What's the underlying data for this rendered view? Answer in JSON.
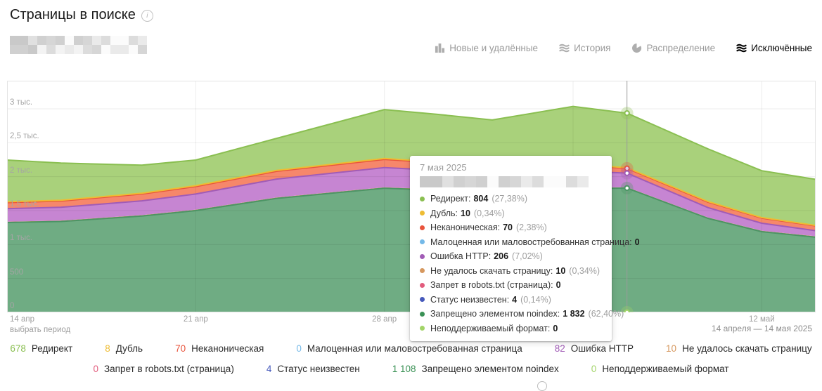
{
  "header": {
    "title": "Страницы в поиске"
  },
  "tabs": [
    {
      "id": "new-removed",
      "label": "Новые и удалённые",
      "icon": "bars-icon",
      "active": false
    },
    {
      "id": "history",
      "label": "История",
      "icon": "waves-icon",
      "active": false
    },
    {
      "id": "distribution",
      "label": "Распределение",
      "icon": "pie-icon",
      "active": false
    },
    {
      "id": "excluded",
      "label": "Исключённые",
      "icon": "waves-icon",
      "active": true
    }
  ],
  "chart_data": {
    "type": "area",
    "stacked": true,
    "x_unit": "days offset from 14 апр 2025",
    "x_keypoints": [
      0,
      2,
      5,
      7,
      10,
      14,
      16,
      18,
      21,
      23,
      26,
      28,
      30
    ],
    "x_gridline_days": [
      7,
      14,
      21,
      28
    ],
    "x_tick_labels": [
      {
        "label": "14 апр",
        "day": 0
      },
      {
        "label": "21 апр",
        "day": 7
      },
      {
        "label": "28 апр",
        "day": 14
      },
      {
        "label": "12 май",
        "day": 28
      }
    ],
    "y_ticks": [
      {
        "label": "0",
        "value": 0
      },
      {
        "label": "500",
        "value": 500
      },
      {
        "label": "1 тыс.",
        "value": 1000
      },
      {
        "label": "1,5 тыс.",
        "value": 1500
      },
      {
        "label": "2 тыс.",
        "value": 2000
      },
      {
        "label": "2,5 тыс.",
        "value": 2500
      },
      {
        "label": "3 тыс.",
        "value": 3000
      }
    ],
    "ylim": [
      0,
      3414
    ],
    "grid": true,
    "series_bottom_to_top": [
      {
        "name": "Неподдерживаемый формат",
        "fill": "#a2d468",
        "stroke": null,
        "values": [
          0,
          0,
          0,
          0,
          0,
          0,
          0,
          0,
          0,
          0,
          0,
          0,
          0
        ]
      },
      {
        "name": "Запрещено элементом noindex",
        "fill": "#6fac83",
        "stroke": "#4c9465",
        "values": [
          1324,
          1340,
          1420,
          1500,
          1680,
          1830,
          1800,
          1770,
          1820,
          1832,
          1386,
          1190,
          1108
        ]
      },
      {
        "name": "Статус неизвестен",
        "fill": "#4659bb",
        "stroke": null,
        "values": [
          4,
          4,
          4,
          4,
          4,
          4,
          4,
          4,
          4,
          4,
          4,
          4,
          4
        ]
      },
      {
        "name": "Запрет в robots.txt (страница)",
        "fill": "#e25c7d",
        "stroke": null,
        "values": [
          0,
          0,
          0,
          0,
          0,
          0,
          0,
          0,
          0,
          0,
          0,
          0,
          0
        ]
      },
      {
        "name": "Не удалось скачать страницу",
        "fill": "#d89a62",
        "stroke": null,
        "values": [
          10,
          10,
          10,
          10,
          10,
          10,
          10,
          10,
          10,
          10,
          10,
          10,
          10
        ]
      },
      {
        "name": "Ошибка HTTP",
        "fill": "#c685d2",
        "stroke": "#a15cb6",
        "values": [
          190,
          195,
          210,
          230,
          270,
          290,
          280,
          260,
          250,
          206,
          145,
          110,
          82
        ]
      },
      {
        "name": "Малоценная или маловостребованная страница",
        "fill": "#74b9e8",
        "stroke": null,
        "values": [
          0,
          0,
          0,
          0,
          0,
          0,
          0,
          0,
          0,
          0,
          0,
          0,
          0
        ]
      },
      {
        "name": "Неканоническая",
        "fill": "#f6876b",
        "stroke": "#e9543c",
        "values": [
          90,
          92,
          100,
          110,
          115,
          120,
          110,
          100,
          90,
          70,
          80,
          75,
          70
        ]
      },
      {
        "name": "Дубль",
        "fill": "#f3c13e",
        "stroke": "#eebc33",
        "values": [
          12,
          12,
          12,
          13,
          14,
          15,
          13,
          12,
          11,
          10,
          9,
          9,
          8
        ]
      },
      {
        "name": "Редирект",
        "fill": "#a9d17b",
        "stroke": "#8abf51",
        "values": [
          615,
          547,
          414,
          378,
          472,
          720,
          700,
          680,
          850,
          804,
          776,
          690,
          678
        ]
      }
    ],
    "crosshair_day": 23,
    "crosshair_markers": [
      {
        "series": "Редирект",
        "color": "#8abf51"
      },
      {
        "series": "Неканоническая",
        "color": "#e9543c"
      },
      {
        "series": "Ошибка HTTP",
        "color": "#a15cb6"
      },
      {
        "series": "Запрещено элементом noindex",
        "color": "#4c9465"
      },
      {
        "series": "Неподдерживаемый формат",
        "color": "#a2d468"
      }
    ]
  },
  "tooltip": {
    "date": "7 мая 2025",
    "rows": [
      {
        "label": "Редирект",
        "value": "804",
        "percent": "(27,38%)",
        "color": "#8abf51"
      },
      {
        "label": "Дубль",
        "value": "10",
        "percent": "(0,34%)",
        "color": "#eebc33"
      },
      {
        "label": "Неканоническая",
        "value": "70",
        "percent": "(2,38%)",
        "color": "#e9543c"
      },
      {
        "label": "Малоценная или маловостребованная страница",
        "value": "0",
        "percent": "",
        "color": "#74b9e8"
      },
      {
        "label": "Ошибка HTTP",
        "value": "206",
        "percent": "(7,02%)",
        "color": "#a15cb6"
      },
      {
        "label": "Не удалось скачать страницу",
        "value": "10",
        "percent": "(0,34%)",
        "color": "#d6985f"
      },
      {
        "label": "Запрет в robots.txt (страница)",
        "value": "0",
        "percent": "",
        "color": "#e25c7d"
      },
      {
        "label": "Статус неизвестен",
        "value": "4",
        "percent": "(0,14%)",
        "color": "#4659bb"
      },
      {
        "label": "Запрещено элементом noindex",
        "value": "1 832",
        "percent": "(62,40%)",
        "color": "#3a9155"
      },
      {
        "label": "Неподдерживаемый формат",
        "value": "0",
        "percent": "",
        "color": "#a2d468"
      }
    ]
  },
  "footer": {
    "select_period": "выбрать период",
    "date_range": "14 апреля — 14 мая 2025"
  },
  "legend": {
    "row1": [
      {
        "value": "678",
        "label": "Редирект",
        "color": "#8abf51"
      },
      {
        "value": "8",
        "label": "Дубль",
        "color": "#eebc33"
      },
      {
        "value": "70",
        "label": "Неканоническая",
        "color": "#e9543c"
      },
      {
        "value": "0",
        "label": "Малоценная или маловостребованная страница",
        "color": "#74b9e8"
      },
      {
        "value": "82",
        "label": "Ошибка HTTP",
        "color": "#a15cb6"
      },
      {
        "value": "10",
        "label": "Не удалось скачать страницу",
        "color": "#d6985f"
      }
    ],
    "row2": [
      {
        "value": "0",
        "label": "Запрет в robots.txt (страница)",
        "color": "#e25c7d"
      },
      {
        "value": "4",
        "label": "Статус неизвестен",
        "color": "#4659bb"
      },
      {
        "value": "1 108",
        "label": "Запрещено элементом noindex",
        "color": "#3a9155"
      },
      {
        "value": "0",
        "label": "Неподдерживаемый формат",
        "color": "#a2d468"
      }
    ]
  }
}
